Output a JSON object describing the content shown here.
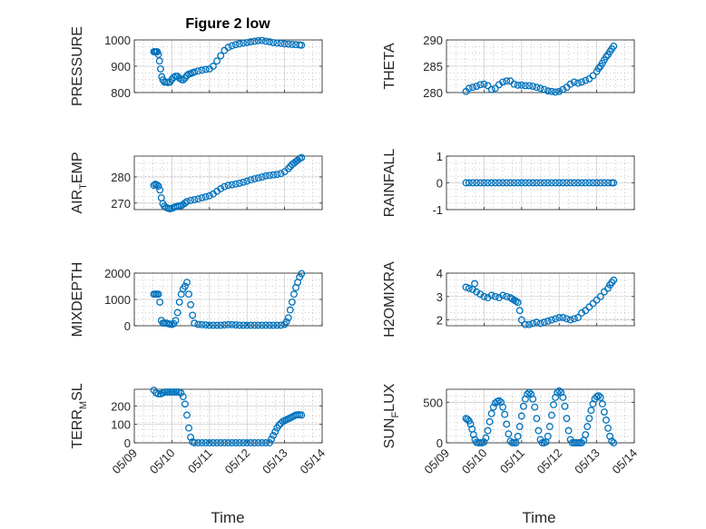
{
  "figure": {
    "title": "Figure 2 low"
  },
  "colors": {
    "marker": "#0072BD",
    "axis": "#262626",
    "grid": "#d0d0d0",
    "minor_grid": "#9a9a9a"
  },
  "chart_data": [
    {
      "type": "scatter",
      "id": "pressure",
      "ylabel": "PRESSURE",
      "yticks": [
        "800",
        "900",
        "1000"
      ],
      "ylim": [
        800,
        1000
      ],
      "xticks": [
        "05/09",
        "05/10",
        "05/11",
        "05/12",
        "05/13",
        "05/14"
      ],
      "xlim": [
        0,
        5
      ],
      "x": [
        0.52,
        0.55,
        0.58,
        0.61,
        0.64,
        0.67,
        0.7,
        0.73,
        0.76,
        0.8,
        0.85,
        0.9,
        0.95,
        1.0,
        1.05,
        1.1,
        1.15,
        1.2,
        1.25,
        1.3,
        1.35,
        1.4,
        1.45,
        1.5,
        1.55,
        1.6,
        1.7,
        1.8,
        1.9,
        2.0,
        2.1,
        2.2,
        2.3,
        2.4,
        2.5,
        2.6,
        2.7,
        2.8,
        2.9,
        3.0,
        3.1,
        3.2,
        3.3,
        3.4,
        3.5,
        3.6,
        3.7,
        3.8,
        3.9,
        4.0,
        4.1,
        4.2,
        4.3,
        4.4,
        4.45
      ],
      "y": [
        955,
        955,
        955,
        955,
        945,
        920,
        890,
        860,
        848,
        840,
        840,
        838,
        840,
        850,
        858,
        862,
        862,
        855,
        850,
        848,
        855,
        865,
        870,
        872,
        875,
        878,
        882,
        885,
        888,
        890,
        900,
        920,
        940,
        960,
        972,
        978,
        982,
        985,
        988,
        990,
        993,
        995,
        997,
        998,
        995,
        993,
        990,
        988,
        987,
        985,
        984,
        983,
        982,
        981,
        980
      ]
    },
    {
      "type": "scatter",
      "id": "theta",
      "ylabel": "THETA",
      "yticks": [
        "280",
        "285",
        "290"
      ],
      "ylim": [
        280,
        290
      ],
      "xticks": [
        "05/09",
        "05/10",
        "05/11",
        "05/12",
        "05/13",
        "05/14"
      ],
      "xlim": [
        0,
        5
      ],
      "x": [
        0.52,
        0.6,
        0.7,
        0.8,
        0.9,
        1.0,
        1.1,
        1.2,
        1.3,
        1.4,
        1.5,
        1.6,
        1.7,
        1.8,
        1.9,
        2.0,
        2.1,
        2.2,
        2.3,
        2.4,
        2.5,
        2.6,
        2.7,
        2.8,
        2.9,
        3.0,
        3.1,
        3.2,
        3.3,
        3.4,
        3.5,
        3.6,
        3.7,
        3.8,
        3.9,
        4.0,
        4.05,
        4.1,
        4.15,
        4.2,
        4.25,
        4.3,
        4.35,
        4.4,
        4.45
      ],
      "y": [
        280.2,
        280.8,
        281.0,
        281.2,
        281.5,
        281.6,
        281.3,
        280.6,
        280.8,
        281.5,
        282.0,
        282.2,
        282.2,
        281.6,
        281.4,
        281.4,
        281.3,
        281.3,
        281.2,
        281.0,
        280.8,
        280.6,
        280.3,
        280.2,
        280.1,
        280.2,
        280.6,
        281.0,
        281.6,
        282.0,
        281.8,
        282.0,
        282.3,
        282.6,
        283.2,
        284.0,
        284.6,
        285.0,
        285.6,
        286.2,
        286.8,
        287.2,
        287.8,
        288.3,
        288.8
      ]
    },
    {
      "type": "scatter",
      "id": "air_temp",
      "ylabel": "AIR",
      "ylabel_sub": "T",
      "ylabel_tail": "EMP",
      "yticks": [
        "270",
        "280"
      ],
      "ylim": [
        267.5,
        288
      ],
      "xticks": [
        "05/09",
        "05/10",
        "05/11",
        "05/12",
        "05/13",
        "05/14"
      ],
      "xlim": [
        0,
        5
      ],
      "x": [
        0.52,
        0.56,
        0.6,
        0.64,
        0.68,
        0.72,
        0.76,
        0.8,
        0.85,
        0.9,
        0.95,
        1.0,
        1.05,
        1.1,
        1.15,
        1.2,
        1.25,
        1.3,
        1.35,
        1.4,
        1.5,
        1.6,
        1.7,
        1.8,
        1.9,
        2.0,
        2.1,
        2.2,
        2.3,
        2.4,
        2.5,
        2.6,
        2.7,
        2.8,
        2.9,
        3.0,
        3.1,
        3.2,
        3.3,
        3.4,
        3.5,
        3.6,
        3.7,
        3.8,
        3.9,
        4.0,
        4.1,
        4.15,
        4.2,
        4.25,
        4.3,
        4.35,
        4.4,
        4.45
      ],
      "y": [
        276.8,
        277.2,
        277.0,
        276.5,
        275.0,
        272.0,
        269.8,
        268.8,
        268.3,
        268.0,
        267.8,
        268.0,
        268.3,
        268.6,
        268.8,
        268.9,
        269.0,
        269.5,
        270.0,
        270.6,
        271.0,
        271.3,
        271.6,
        272.0,
        272.4,
        272.8,
        273.5,
        274.5,
        275.5,
        276.3,
        276.8,
        277.0,
        277.3,
        277.6,
        278.0,
        278.4,
        278.9,
        279.3,
        279.6,
        280.0,
        280.4,
        280.6,
        280.8,
        281.0,
        281.3,
        282.0,
        283.2,
        284.0,
        284.8,
        285.3,
        285.9,
        286.4,
        287.0,
        287.4
      ]
    },
    {
      "type": "scatter",
      "id": "rainfall",
      "ylabel": "RAINFALL",
      "yticks": [
        "-1",
        "0",
        "1"
      ],
      "ylim": [
        -1,
        1
      ],
      "xticks": [
        "05/09",
        "05/10",
        "05/11",
        "05/12",
        "05/13",
        "05/14"
      ],
      "xlim": [
        0,
        5
      ],
      "x": [
        0.52,
        0.6,
        0.7,
        0.8,
        0.9,
        1.0,
        1.1,
        1.2,
        1.3,
        1.4,
        1.5,
        1.6,
        1.7,
        1.8,
        1.9,
        2.0,
        2.1,
        2.2,
        2.3,
        2.4,
        2.5,
        2.6,
        2.7,
        2.8,
        2.9,
        3.0,
        3.1,
        3.2,
        3.3,
        3.4,
        3.5,
        3.6,
        3.7,
        3.8,
        3.9,
        4.0,
        4.1,
        4.2,
        4.3,
        4.4,
        4.45
      ],
      "y": [
        0,
        0,
        0,
        0,
        0,
        0,
        0,
        0,
        0,
        0,
        0,
        0,
        0,
        0,
        0,
        0,
        0,
        0,
        0,
        0,
        0,
        0,
        0,
        0,
        0,
        0,
        0,
        0,
        0,
        0,
        0,
        0,
        0,
        0,
        0,
        0,
        0,
        0,
        0,
        0,
        0
      ]
    },
    {
      "type": "scatter",
      "id": "mixdepth",
      "ylabel": "MIXDEPTH",
      "yticks": [
        "0",
        "1000",
        "2000"
      ],
      "ylim": [
        0,
        2000
      ],
      "xticks": [
        "05/09",
        "05/10",
        "05/11",
        "05/12",
        "05/13",
        "05/14"
      ],
      "xlim": [
        0,
        5
      ],
      "x": [
        0.52,
        0.56,
        0.6,
        0.64,
        0.68,
        0.72,
        0.76,
        0.8,
        0.85,
        0.9,
        0.95,
        1.0,
        1.05,
        1.1,
        1.15,
        1.2,
        1.25,
        1.3,
        1.35,
        1.4,
        1.45,
        1.5,
        1.55,
        1.6,
        1.7,
        1.8,
        1.9,
        2.0,
        2.1,
        2.2,
        2.3,
        2.4,
        2.5,
        2.6,
        2.7,
        2.8,
        2.9,
        3.0,
        3.1,
        3.2,
        3.3,
        3.4,
        3.5,
        3.6,
        3.7,
        3.8,
        3.9,
        4.0,
        4.05,
        4.1,
        4.15,
        4.2,
        4.25,
        4.3,
        4.35,
        4.4,
        4.45
      ],
      "y": [
        1200,
        1200,
        1200,
        1200,
        900,
        200,
        100,
        100,
        100,
        80,
        60,
        50,
        80,
        200,
        500,
        900,
        1200,
        1400,
        1500,
        1650,
        1200,
        800,
        400,
        100,
        50,
        40,
        30,
        20,
        20,
        20,
        20,
        30,
        40,
        40,
        30,
        20,
        20,
        20,
        20,
        20,
        20,
        20,
        20,
        20,
        20,
        20,
        20,
        50,
        150,
        300,
        600,
        900,
        1200,
        1450,
        1650,
        1850,
        1980
      ]
    },
    {
      "type": "scatter",
      "id": "h2omixra",
      "ylabel": "H2OMIXRA",
      "yticks": [
        "2",
        "3",
        "4"
      ],
      "ylim": [
        1.75,
        4
      ],
      "xticks": [
        "05/09",
        "05/10",
        "05/11",
        "05/12",
        "05/13",
        "05/14"
      ],
      "xlim": [
        0,
        5
      ],
      "x": [
        0.52,
        0.6,
        0.7,
        0.75,
        0.8,
        0.9,
        1.0,
        1.1,
        1.2,
        1.3,
        1.4,
        1.5,
        1.6,
        1.7,
        1.75,
        1.8,
        1.85,
        1.9,
        1.95,
        2.0,
        2.1,
        2.2,
        2.3,
        2.4,
        2.5,
        2.6,
        2.7,
        2.8,
        2.9,
        3.0,
        3.1,
        3.2,
        3.3,
        3.4,
        3.5,
        3.6,
        3.7,
        3.8,
        3.9,
        4.0,
        4.1,
        4.2,
        4.3,
        4.35,
        4.4,
        4.45
      ],
      "y": [
        3.4,
        3.35,
        3.3,
        3.55,
        3.2,
        3.1,
        3.0,
        2.95,
        3.05,
        3.0,
        2.95,
        3.05,
        3.0,
        2.95,
        2.9,
        2.85,
        2.8,
        2.75,
        2.4,
        2.0,
        1.8,
        1.8,
        1.85,
        1.9,
        1.85,
        1.9,
        1.95,
        2.0,
        2.05,
        2.1,
        2.1,
        2.05,
        2.0,
        2.05,
        2.1,
        2.3,
        2.4,
        2.55,
        2.7,
        2.85,
        3.0,
        3.2,
        3.35,
        3.5,
        3.6,
        3.7
      ]
    },
    {
      "type": "scatter",
      "id": "terr_msl",
      "ylabel": "TERR",
      "ylabel_sub": "M",
      "ylabel_tail": "SL",
      "yticks": [
        "0",
        "100",
        "200"
      ],
      "ylim": [
        0,
        290
      ],
      "xticks": [
        "05/09",
        "05/10",
        "05/11",
        "05/12",
        "05/13",
        "05/14"
      ],
      "xlim": [
        0,
        5
      ],
      "x": [
        0.52,
        0.58,
        0.64,
        0.7,
        0.76,
        0.82,
        0.88,
        0.94,
        1.0,
        1.06,
        1.12,
        1.18,
        1.24,
        1.3,
        1.35,
        1.4,
        1.45,
        1.5,
        1.55,
        1.6,
        1.7,
        1.8,
        1.9,
        2.0,
        2.1,
        2.2,
        2.3,
        2.4,
        2.5,
        2.6,
        2.7,
        2.8,
        2.9,
        3.0,
        3.1,
        3.2,
        3.3,
        3.4,
        3.5,
        3.6,
        3.65,
        3.7,
        3.75,
        3.8,
        3.85,
        3.9,
        3.95,
        4.0,
        4.05,
        4.1,
        4.15,
        4.2,
        4.25,
        4.3,
        4.35,
        4.4,
        4.45
      ],
      "y": [
        285,
        270,
        265,
        265,
        270,
        275,
        275,
        275,
        275,
        275,
        275,
        275,
        270,
        250,
        210,
        150,
        80,
        30,
        5,
        0,
        0,
        0,
        0,
        0,
        0,
        0,
        0,
        0,
        0,
        0,
        0,
        0,
        0,
        0,
        0,
        0,
        0,
        0,
        0,
        0,
        20,
        40,
        60,
        80,
        95,
        105,
        115,
        120,
        125,
        130,
        135,
        140,
        145,
        150,
        152,
        152,
        150
      ]
    },
    {
      "type": "scatter",
      "id": "sun_flux",
      "ylabel": "SUN",
      "ylabel_sub": "F",
      "ylabel_tail": "LUX",
      "yticks": [
        "0",
        "500"
      ],
      "ylim": [
        0,
        660
      ],
      "xticks": [
        "05/09",
        "05/10",
        "05/11",
        "05/12",
        "05/13",
        "05/14"
      ],
      "xlim": [
        0,
        5
      ],
      "x": [
        0.52,
        0.56,
        0.6,
        0.64,
        0.68,
        0.72,
        0.76,
        0.8,
        0.85,
        0.9,
        0.95,
        1.0,
        1.05,
        1.1,
        1.15,
        1.2,
        1.25,
        1.3,
        1.35,
        1.4,
        1.45,
        1.5,
        1.55,
        1.6,
        1.65,
        1.7,
        1.75,
        1.8,
        1.85,
        1.9,
        1.95,
        2.0,
        2.05,
        2.1,
        2.15,
        2.2,
        2.25,
        2.3,
        2.35,
        2.4,
        2.45,
        2.5,
        2.55,
        2.6,
        2.65,
        2.7,
        2.75,
        2.8,
        2.85,
        2.9,
        2.95,
        3.0,
        3.05,
        3.1,
        3.15,
        3.2,
        3.25,
        3.3,
        3.35,
        3.4,
        3.45,
        3.5,
        3.55,
        3.6,
        3.65,
        3.7,
        3.75,
        3.8,
        3.85,
        3.9,
        3.95,
        4.0,
        4.05,
        4.1,
        4.15,
        4.2,
        4.25,
        4.3,
        4.35,
        4.4,
        4.45
      ],
      "y": [
        300,
        290,
        270,
        230,
        170,
        100,
        40,
        5,
        0,
        0,
        0,
        10,
        60,
        150,
        260,
        360,
        440,
        490,
        510,
        520,
        500,
        440,
        350,
        230,
        110,
        20,
        0,
        0,
        0,
        80,
        200,
        330,
        450,
        540,
        600,
        620,
        600,
        540,
        440,
        300,
        150,
        40,
        0,
        0,
        10,
        80,
        200,
        340,
        470,
        560,
        620,
        640,
        620,
        560,
        450,
        300,
        150,
        40,
        0,
        0,
        0,
        0,
        0,
        0,
        30,
        100,
        200,
        300,
        400,
        480,
        540,
        570,
        580,
        560,
        480,
        380,
        280,
        180,
        80,
        20,
        0
      ]
    }
  ],
  "xlabels": [
    "Time",
    "Time"
  ]
}
